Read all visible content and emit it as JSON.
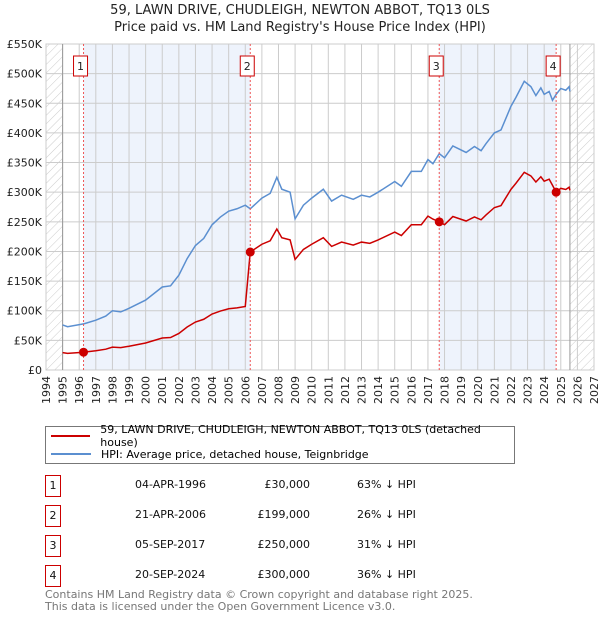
{
  "chart_data": {
    "type": "line",
    "title": "59, LAWN DRIVE, CHUDLEIGH, NEWTON ABBOT, TQ13 0LS",
    "subtitle": "Price paid vs. HM Land Registry's House Price Index (HPI)",
    "xlim": [
      1994,
      2027
    ],
    "ylim": [
      0,
      550000
    ],
    "x_ticks": [
      "1994",
      "1995",
      "1996",
      "1997",
      "1998",
      "1999",
      "2000",
      "2001",
      "2002",
      "2003",
      "2004",
      "2005",
      "2006",
      "2007",
      "2008",
      "2009",
      "2010",
      "2011",
      "2012",
      "2013",
      "2014",
      "2015",
      "2016",
      "2017",
      "2018",
      "2019",
      "2020",
      "2021",
      "2022",
      "2023",
      "2024",
      "2025",
      "2026",
      "2027"
    ],
    "y_ticks": [
      {
        "v": 0,
        "label": "£0"
      },
      {
        "v": 50000,
        "label": "£50K"
      },
      {
        "v": 100000,
        "label": "£100K"
      },
      {
        "v": 150000,
        "label": "£150K"
      },
      {
        "v": 200000,
        "label": "£200K"
      },
      {
        "v": 250000,
        "label": "£250K"
      },
      {
        "v": 300000,
        "label": "£300K"
      },
      {
        "v": 350000,
        "label": "£350K"
      },
      {
        "v": 400000,
        "label": "£400K"
      },
      {
        "v": 450000,
        "label": "£450K"
      },
      {
        "v": 500000,
        "label": "£500K"
      },
      {
        "v": 550000,
        "label": "£550K"
      }
    ],
    "data_range": [
      1995,
      2025.55
    ],
    "series": [
      {
        "name": "59, LAWN DRIVE, CHUDLEIGH, NEWTON ABBOT, TQ13 0LS (detached house)",
        "color": "#cc0000",
        "derived_from_hpi": true
      },
      {
        "name": "HPI: Average price, detached house, Teignbridge",
        "color": "#5b8fd0",
        "x": [
          1995.0,
          1995.3,
          1996.3,
          1997.0,
          1997.6,
          1998.0,
          1998.5,
          1999.0,
          2000.0,
          2001.0,
          2001.5,
          2002.0,
          2002.5,
          2003.0,
          2003.5,
          2004.0,
          2004.5,
          2005.0,
          2005.5,
          2006.0,
          2006.3,
          2007.0,
          2007.5,
          2007.9,
          2008.2,
          2008.7,
          2009.0,
          2009.5,
          2010.0,
          2010.7,
          2011.2,
          2011.8,
          2012.5,
          2013.0,
          2013.5,
          2014.0,
          2015.0,
          2015.4,
          2016.0,
          2016.6,
          2017.0,
          2017.3,
          2017.68,
          2018.0,
          2018.5,
          2019.3,
          2019.8,
          2020.2,
          2020.5,
          2021.0,
          2021.4,
          2022.0,
          2022.3,
          2022.8,
          2023.2,
          2023.5,
          2023.8,
          2024.0,
          2024.3,
          2024.5,
          2024.72,
          2025.0,
          2025.3,
          2025.5,
          2025.55
        ],
        "y": [
          76000,
          73000,
          78000,
          84000,
          91000,
          100000,
          98000,
          104000,
          118000,
          140000,
          142000,
          160000,
          188000,
          210000,
          222000,
          245000,
          258000,
          268000,
          272000,
          278000,
          272000,
          290000,
          298000,
          325000,
          305000,
          300000,
          255000,
          278000,
          290000,
          305000,
          285000,
          295000,
          288000,
          295000,
          292000,
          300000,
          318000,
          310000,
          335000,
          335000,
          355000,
          348000,
          365000,
          358000,
          378000,
          367000,
          377000,
          370000,
          382000,
          400000,
          405000,
          445000,
          460000,
          487000,
          478000,
          463000,
          476000,
          465000,
          470000,
          455000,
          465000,
          475000,
          472000,
          478000,
          470000
        ]
      }
    ],
    "sales": [
      {
        "n": "1",
        "x": 1996.26,
        "date": "04-APR-1996",
        "price": 30000,
        "price_label": "£30,000",
        "hpi_label": "63% ↓ HPI"
      },
      {
        "n": "2",
        "x": 2006.3,
        "date": "21-APR-2006",
        "price": 199000,
        "price_label": "£199,000",
        "hpi_label": "26% ↓ HPI"
      },
      {
        "n": "3",
        "x": 2017.68,
        "date": "05-SEP-2017",
        "price": 250000,
        "price_label": "£250,000",
        "hpi_label": "31% ↓ HPI"
      },
      {
        "n": "4",
        "x": 2024.72,
        "date": "20-SEP-2024",
        "price": 300000,
        "price_label": "£300,000",
        "hpi_label": "36% ↓ HPI"
      }
    ],
    "legend_placement": "below"
  },
  "footer": {
    "line1": "Contains HM Land Registry data © Crown copyright and database right 2025.",
    "line2": "This data is licensed under the Open Government Licence v3.0."
  }
}
